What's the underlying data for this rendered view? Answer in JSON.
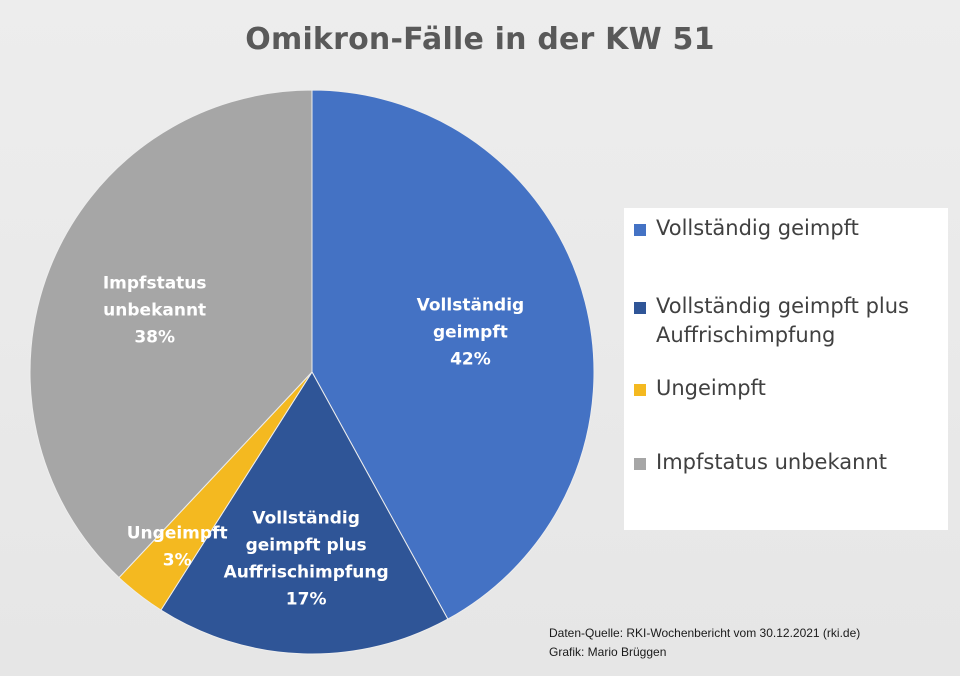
{
  "chart_data": {
    "type": "pie",
    "title": "Omikron-Fälle in der KW 51",
    "slices": [
      {
        "name": "Vollständig geimpft",
        "value": 42,
        "value_label": "42%",
        "color": "#4472c4",
        "label_lines": [
          "Vollständig",
          "geimpft",
          "42%"
        ]
      },
      {
        "name": "Vollständig geimpft plus Auffrischimpfung",
        "value": 17,
        "value_label": "17%",
        "color": "#2f5597",
        "label_lines": [
          "Vollständig",
          "geimpft plus",
          "Auffrischimpfung",
          "17%"
        ]
      },
      {
        "name": "Ungeimpft",
        "value": 3,
        "value_label": "3%",
        "color": "#f4b920",
        "label_lines": [
          "Ungeimpft",
          "3%"
        ]
      },
      {
        "name": "Impfstatus unbekannt",
        "value": 38,
        "value_label": "38%",
        "color": "#a6a6a6",
        "label_lines": [
          "Impfstatus",
          "unbekannt",
          "38%"
        ]
      }
    ],
    "start_angle": "12 o'clock",
    "direction": "clockwise",
    "legend": {
      "position": "right",
      "items": [
        {
          "label_lines": [
            "Vollständig geimpft"
          ],
          "color": "#4472c4"
        },
        {
          "label_lines": [
            "Vollständig geimpft plus",
            "Auffrischimpfung"
          ],
          "color": "#2f5597"
        },
        {
          "label_lines": [
            "Ungeimpft"
          ],
          "color": "#f4b920"
        },
        {
          "label_lines": [
            "Impfstatus unbekannt"
          ],
          "color": "#a6a6a6"
        }
      ]
    }
  },
  "source": {
    "line1": "Daten-Quelle: RKI-Wochenbericht vom 30.12.2021 (rki.de)",
    "line2": "Grafik: Mario Brüggen"
  }
}
